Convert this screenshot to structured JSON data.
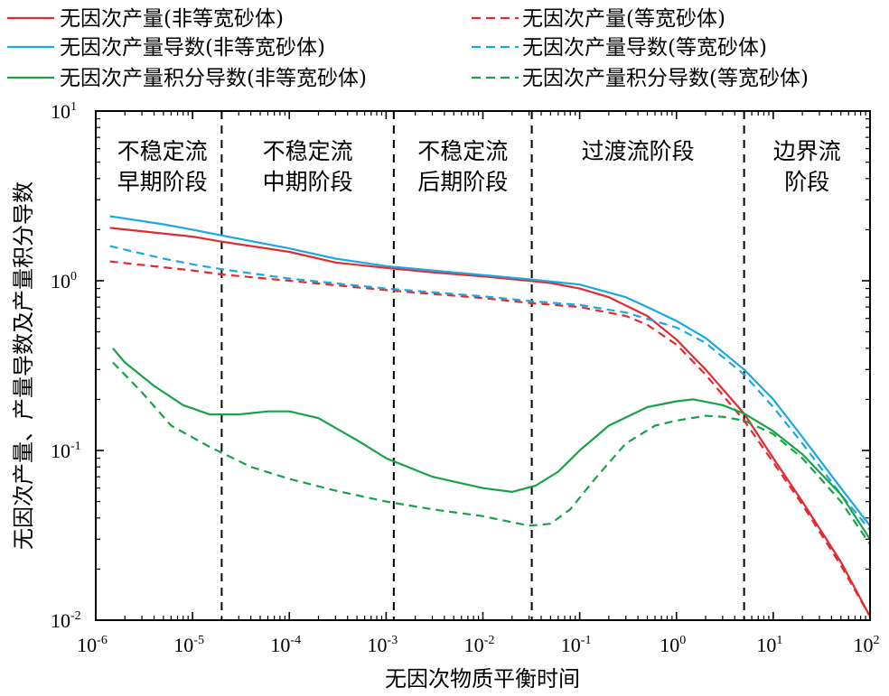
{
  "chart_data": {
    "type": "line",
    "xscale": "log",
    "yscale": "log",
    "xlim": [
      1e-06,
      100
    ],
    "ylim": [
      0.01,
      10
    ],
    "xlabel": "无因次物质平衡时间",
    "ylabel": "无因次产量、产量导数及产量积分导数",
    "x_ticks": [
      {
        "base": "10",
        "exp": "-6"
      },
      {
        "base": "10",
        "exp": "-5"
      },
      {
        "base": "10",
        "exp": "-4"
      },
      {
        "base": "10",
        "exp": "-3"
      },
      {
        "base": "10",
        "exp": "-2"
      },
      {
        "base": "10",
        "exp": "-1"
      },
      {
        "base": "10",
        "exp": "0"
      },
      {
        "base": "10",
        "exp": "1"
      },
      {
        "base": "10",
        "exp": "2"
      }
    ],
    "y_ticks": [
      {
        "base": "10",
        "exp": "-2"
      },
      {
        "base": "10",
        "exp": "-1"
      },
      {
        "base": "10",
        "exp": "0"
      },
      {
        "base": "10",
        "exp": "1"
      }
    ],
    "phase_boundaries": [
      2e-05,
      0.0012,
      0.032,
      5
    ],
    "phases": [
      {
        "lines": [
          "不稳定流",
          "早期阶段"
        ]
      },
      {
        "lines": [
          "不稳定流",
          "中期阶段"
        ]
      },
      {
        "lines": [
          "不稳定流",
          "后期阶段"
        ]
      },
      {
        "lines": [
          "过渡流阶段"
        ]
      },
      {
        "lines": [
          "边界流",
          "阶段"
        ]
      }
    ],
    "series": [
      {
        "name": "无因次产量(非等宽砂体)",
        "color": "#e32a2f",
        "dash": "solid",
        "points": [
          [
            1.4e-06,
            2.05
          ],
          [
            1e-05,
            1.82
          ],
          [
            2e-05,
            1.7
          ],
          [
            0.0001,
            1.48
          ],
          [
            0.0003,
            1.28
          ],
          [
            0.001,
            1.19
          ],
          [
            0.003,
            1.12
          ],
          [
            0.01,
            1.06
          ],
          [
            0.03,
            1.0
          ],
          [
            0.05,
            0.97
          ],
          [
            0.1,
            0.9
          ],
          [
            0.2,
            0.8
          ],
          [
            0.5,
            0.62
          ],
          [
            1,
            0.45
          ],
          [
            2,
            0.3
          ],
          [
            5,
            0.165
          ],
          [
            10,
            0.09
          ],
          [
            20,
            0.05
          ],
          [
            50,
            0.022
          ],
          [
            100,
            0.0105
          ]
        ]
      },
      {
        "name": "无因次产量(等宽砂体)",
        "color": "#e32a2f",
        "dash": "dashed",
        "points": [
          [
            1.4e-06,
            1.3
          ],
          [
            1e-05,
            1.15
          ],
          [
            2e-05,
            1.09
          ],
          [
            0.0001,
            1.0
          ],
          [
            0.001,
            0.88
          ],
          [
            0.01,
            0.79
          ],
          [
            0.03,
            0.74
          ],
          [
            0.1,
            0.7
          ],
          [
            0.3,
            0.62
          ],
          [
            0.5,
            0.55
          ],
          [
            1,
            0.42
          ],
          [
            2,
            0.28
          ],
          [
            5,
            0.15
          ],
          [
            10,
            0.085
          ],
          [
            20,
            0.048
          ],
          [
            50,
            0.021
          ],
          [
            100,
            0.0105
          ]
        ]
      },
      {
        "name": "无因次产量导数(非等宽砂体)",
        "color": "#1ba7e3",
        "dash": "solid",
        "points": [
          [
            1.4e-06,
            2.4
          ],
          [
            5e-06,
            2.15
          ],
          [
            1e-05,
            2.0
          ],
          [
            2e-05,
            1.85
          ],
          [
            0.0001,
            1.55
          ],
          [
            0.0003,
            1.35
          ],
          [
            0.001,
            1.22
          ],
          [
            0.01,
            1.08
          ],
          [
            0.03,
            1.02
          ],
          [
            0.1,
            0.95
          ],
          [
            0.3,
            0.8
          ],
          [
            0.5,
            0.7
          ],
          [
            1,
            0.58
          ],
          [
            2,
            0.46
          ],
          [
            5,
            0.3
          ],
          [
            10,
            0.2
          ],
          [
            20,
            0.12
          ],
          [
            50,
            0.06
          ],
          [
            100,
            0.036
          ]
        ]
      },
      {
        "name": "无因次产量导数(等宽砂体)",
        "color": "#1ba7e3",
        "dash": "dashed",
        "points": [
          [
            1.4e-06,
            1.6
          ],
          [
            5e-06,
            1.35
          ],
          [
            1e-05,
            1.25
          ],
          [
            2e-05,
            1.17
          ],
          [
            0.0001,
            1.03
          ],
          [
            0.001,
            0.9
          ],
          [
            0.01,
            0.81
          ],
          [
            0.03,
            0.76
          ],
          [
            0.1,
            0.72
          ],
          [
            0.3,
            0.65
          ],
          [
            1,
            0.53
          ],
          [
            2,
            0.43
          ],
          [
            5,
            0.28
          ],
          [
            10,
            0.18
          ],
          [
            20,
            0.11
          ],
          [
            50,
            0.055
          ],
          [
            100,
            0.034
          ]
        ]
      },
      {
        "name": "无因次产量积分导数(非等宽砂体)",
        "color": "#17a24a",
        "dash": "solid",
        "points": [
          [
            1.5e-06,
            0.4
          ],
          [
            2e-06,
            0.33
          ],
          [
            4e-06,
            0.24
          ],
          [
            8e-06,
            0.185
          ],
          [
            1.5e-05,
            0.163
          ],
          [
            3e-05,
            0.163
          ],
          [
            6e-05,
            0.17
          ],
          [
            0.0001,
            0.17
          ],
          [
            0.0002,
            0.155
          ],
          [
            0.0005,
            0.115
          ],
          [
            0.001,
            0.09
          ],
          [
            0.003,
            0.07
          ],
          [
            0.01,
            0.06
          ],
          [
            0.02,
            0.057
          ],
          [
            0.035,
            0.062
          ],
          [
            0.06,
            0.075
          ],
          [
            0.1,
            0.1
          ],
          [
            0.2,
            0.14
          ],
          [
            0.5,
            0.18
          ],
          [
            1,
            0.195
          ],
          [
            1.5,
            0.2
          ],
          [
            3,
            0.185
          ],
          [
            5,
            0.165
          ],
          [
            10,
            0.13
          ],
          [
            20,
            0.095
          ],
          [
            50,
            0.055
          ],
          [
            100,
            0.03
          ]
        ]
      },
      {
        "name": "无因次产量积分导数(等宽砂体)",
        "color": "#17a24a",
        "dash": "dashed",
        "points": [
          [
            1.5e-06,
            0.33
          ],
          [
            3e-06,
            0.22
          ],
          [
            6e-06,
            0.14
          ],
          [
            1.5e-05,
            0.105
          ],
          [
            4e-05,
            0.08
          ],
          [
            0.0001,
            0.068
          ],
          [
            0.0003,
            0.058
          ],
          [
            0.001,
            0.05
          ],
          [
            0.003,
            0.045
          ],
          [
            0.01,
            0.041
          ],
          [
            0.03,
            0.036
          ],
          [
            0.05,
            0.037
          ],
          [
            0.08,
            0.045
          ],
          [
            0.15,
            0.07
          ],
          [
            0.3,
            0.11
          ],
          [
            0.6,
            0.14
          ],
          [
            1,
            0.15
          ],
          [
            2,
            0.16
          ],
          [
            3,
            0.158
          ],
          [
            5,
            0.15
          ],
          [
            10,
            0.125
          ],
          [
            20,
            0.09
          ],
          [
            50,
            0.05
          ],
          [
            100,
            0.028
          ]
        ]
      }
    ]
  }
}
